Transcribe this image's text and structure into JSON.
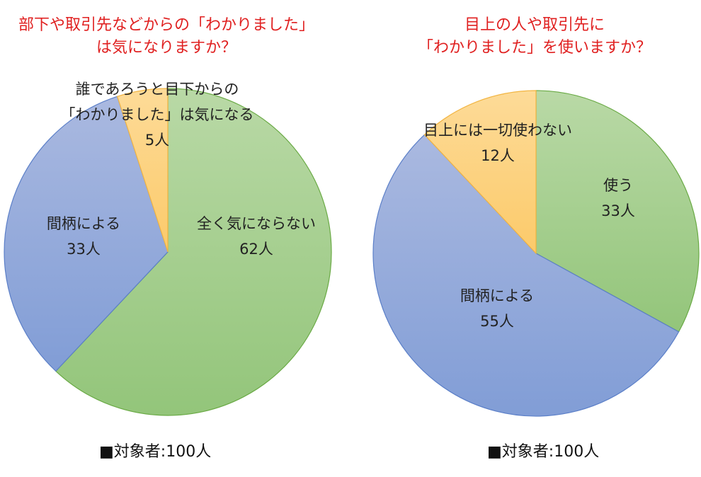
{
  "colors": {
    "title": "#e02020",
    "green": "#9ecb82",
    "blue": "#8ea6d8",
    "yellow": "#fdd07a"
  },
  "chart_data": [
    {
      "type": "pie",
      "title_lines": [
        "部下や取引先などからの「わかりました」",
        "は気になりますか？"
      ],
      "slices": [
        {
          "label_lines": [
            "全く気にならない"
          ],
          "value_label": "62人",
          "value": 62,
          "color": "green"
        },
        {
          "label_lines": [
            "間柄による"
          ],
          "value_label": "33人",
          "value": 33,
          "color": "blue"
        },
        {
          "label_lines": [
            "誰であろうと目下からの",
            "「わかりました」は気になる"
          ],
          "value_label": "5人",
          "value": 5,
          "color": "yellow"
        }
      ],
      "footnote": "■対象者:100人"
    },
    {
      "type": "pie",
      "title_lines": [
        "目上の人や取引先に",
        "「わかりました」を使いますか？"
      ],
      "slices": [
        {
          "label_lines": [
            "使う"
          ],
          "value_label": "33人",
          "value": 33,
          "color": "green"
        },
        {
          "label_lines": [
            "間柄による"
          ],
          "value_label": "55人",
          "value": 55,
          "color": "blue"
        },
        {
          "label_lines": [
            "目上には一切使わない"
          ],
          "value_label": "12人",
          "value": 12,
          "color": "yellow"
        }
      ],
      "footnote": "■対象者:100人"
    }
  ]
}
